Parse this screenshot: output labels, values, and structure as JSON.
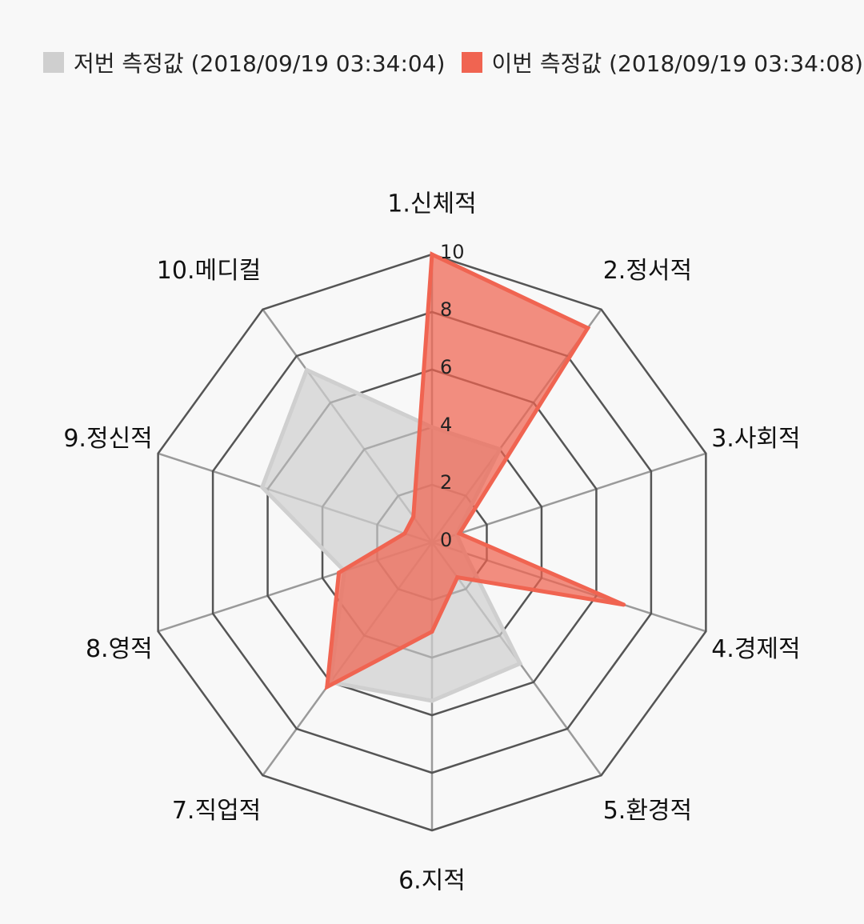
{
  "chart_data": {
    "type": "radar",
    "categories": [
      "1.신체적",
      "2.정서적",
      "3.사회적",
      "4.경제적",
      "5.환경적",
      "6.지적",
      "7.직업적",
      "8.영적",
      "9.정신적",
      "10.메디컬"
    ],
    "ticks": [
      "0",
      "2",
      "4",
      "6",
      "8",
      "10"
    ],
    "rmin": 0,
    "rmax": 10,
    "series": [
      {
        "name": "저번 측정값 (2018/09/19 03:34:04)",
        "color": "#cfcfcf",
        "values": [
          4,
          4,
          0.9,
          1.2,
          5.2,
          5.5,
          6,
          3.2,
          6.2,
          7.4
        ]
      },
      {
        "name": "이번 측정값 (2018/09/19 03:34:08)",
        "color": "#f06451",
        "values": [
          10,
          9.2,
          1,
          7,
          1.5,
          3.1,
          6.2,
          3.4,
          1,
          1.1
        ]
      }
    ]
  }
}
